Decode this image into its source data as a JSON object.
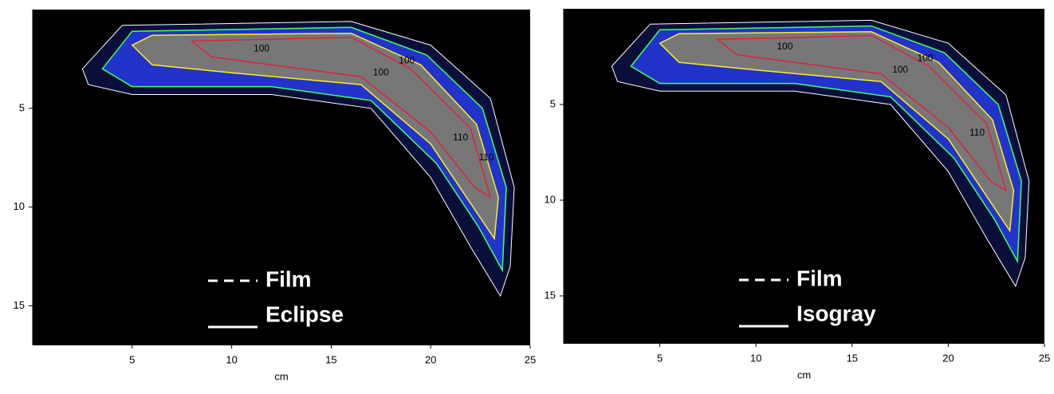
{
  "chart_data": [
    {
      "type": "contour",
      "xlabel": "cm",
      "xlim": [
        0,
        25
      ],
      "ylim": [
        17,
        0
      ],
      "xticks": [
        5,
        10,
        15,
        20,
        25
      ],
      "yticks": [
        5,
        10,
        15
      ],
      "series": [
        {
          "name": "Film",
          "style": "dashed",
          "color": "#ffffff"
        },
        {
          "name": "Eclipse",
          "style": "solid",
          "color": "#ffffff"
        }
      ],
      "annotations": [
        "100",
        "100",
        "100",
        "110",
        "110"
      ]
    },
    {
      "type": "contour",
      "xlabel": "cm",
      "xlim": [
        0,
        25
      ],
      "ylim": [
        17.5,
        0
      ],
      "xticks": [
        5,
        10,
        15,
        20,
        25
      ],
      "yticks": [
        5,
        10,
        15
      ],
      "series": [
        {
          "name": "Film",
          "style": "dashed",
          "color": "#ffffff"
        },
        {
          "name": "Isogray",
          "style": "solid",
          "color": "#ffffff"
        }
      ],
      "annotations": [
        "100",
        "100",
        "100",
        "110"
      ]
    }
  ]
}
